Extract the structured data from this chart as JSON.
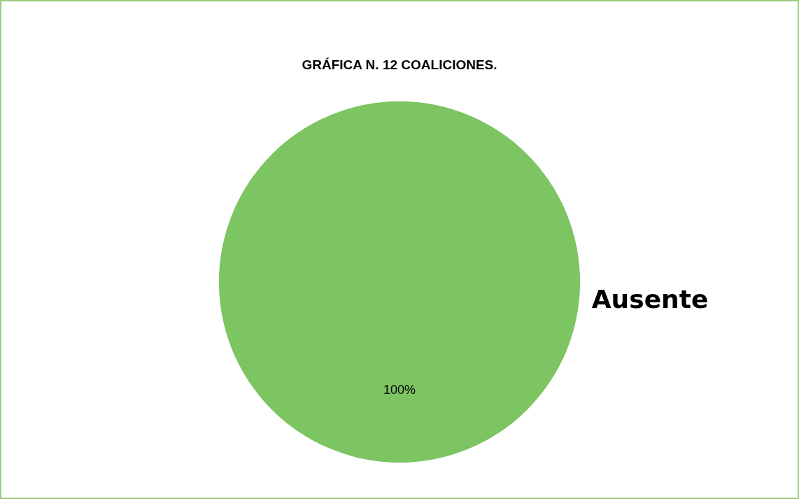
{
  "chart_data": {
    "type": "pie",
    "title": "GRÁFICA N. 12 COALICIONES.",
    "categories": [
      "Ausente"
    ],
    "values": [
      100
    ],
    "colors": [
      "#7dc462"
    ],
    "value_labels": [
      "100%"
    ],
    "legend": false
  }
}
